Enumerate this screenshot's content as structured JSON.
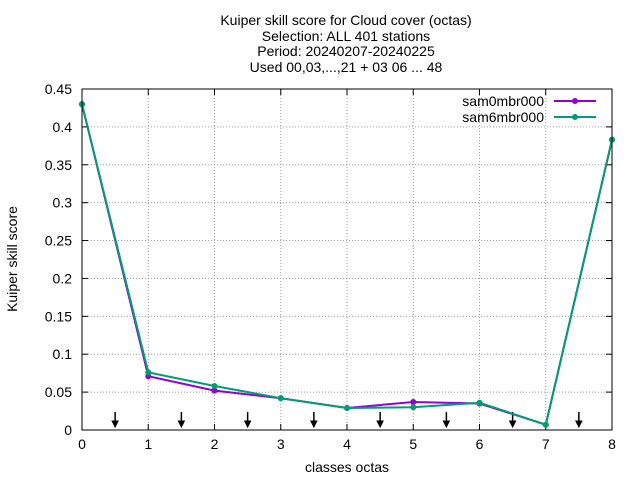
{
  "chart_data": {
    "type": "line",
    "title_lines": [
      "Kuiper skill score  for Cloud cover (octas)",
      "Selection: ALL    401 stations",
      "Period: 20240207-20240225",
      "Used 00,03,...,21 + 03 06 ... 48"
    ],
    "xlabel": "classes octas",
    "ylabel": "Kuiper skill score",
    "xlim": [
      0,
      8
    ],
    "ylim": [
      0,
      0.45
    ],
    "xticks": [
      0,
      1,
      2,
      3,
      4,
      5,
      6,
      7,
      8
    ],
    "yticks": [
      0,
      0.05,
      0.1,
      0.15,
      0.2,
      0.25,
      0.3,
      0.35,
      0.4,
      0.45
    ],
    "ytick_labels": [
      "0",
      "0.05",
      "0.1",
      "0.15",
      "0.2",
      "0.25",
      "0.3",
      "0.35",
      "0.4",
      "0.45"
    ],
    "grid": true,
    "legend_position": "top-right",
    "x": [
      0,
      1,
      2,
      3,
      4,
      5,
      6,
      7,
      8
    ],
    "series": [
      {
        "name": "sam0mbr000",
        "color": "#9400d3",
        "values": [
          0.43,
          0.071,
          0.052,
          0.042,
          0.029,
          0.037,
          0.035,
          0.007,
          0.383
        ]
      },
      {
        "name": "sam6mbr000",
        "color": "#009e73",
        "values": [
          0.43,
          0.076,
          0.058,
          0.042,
          0.029,
          0.03,
          0.036,
          0.007,
          0.383
        ]
      }
    ],
    "arrow_markers_x": [
      0.5,
      1.5,
      2.5,
      3.5,
      4.5,
      5.5,
      6.5,
      7.5
    ]
  }
}
